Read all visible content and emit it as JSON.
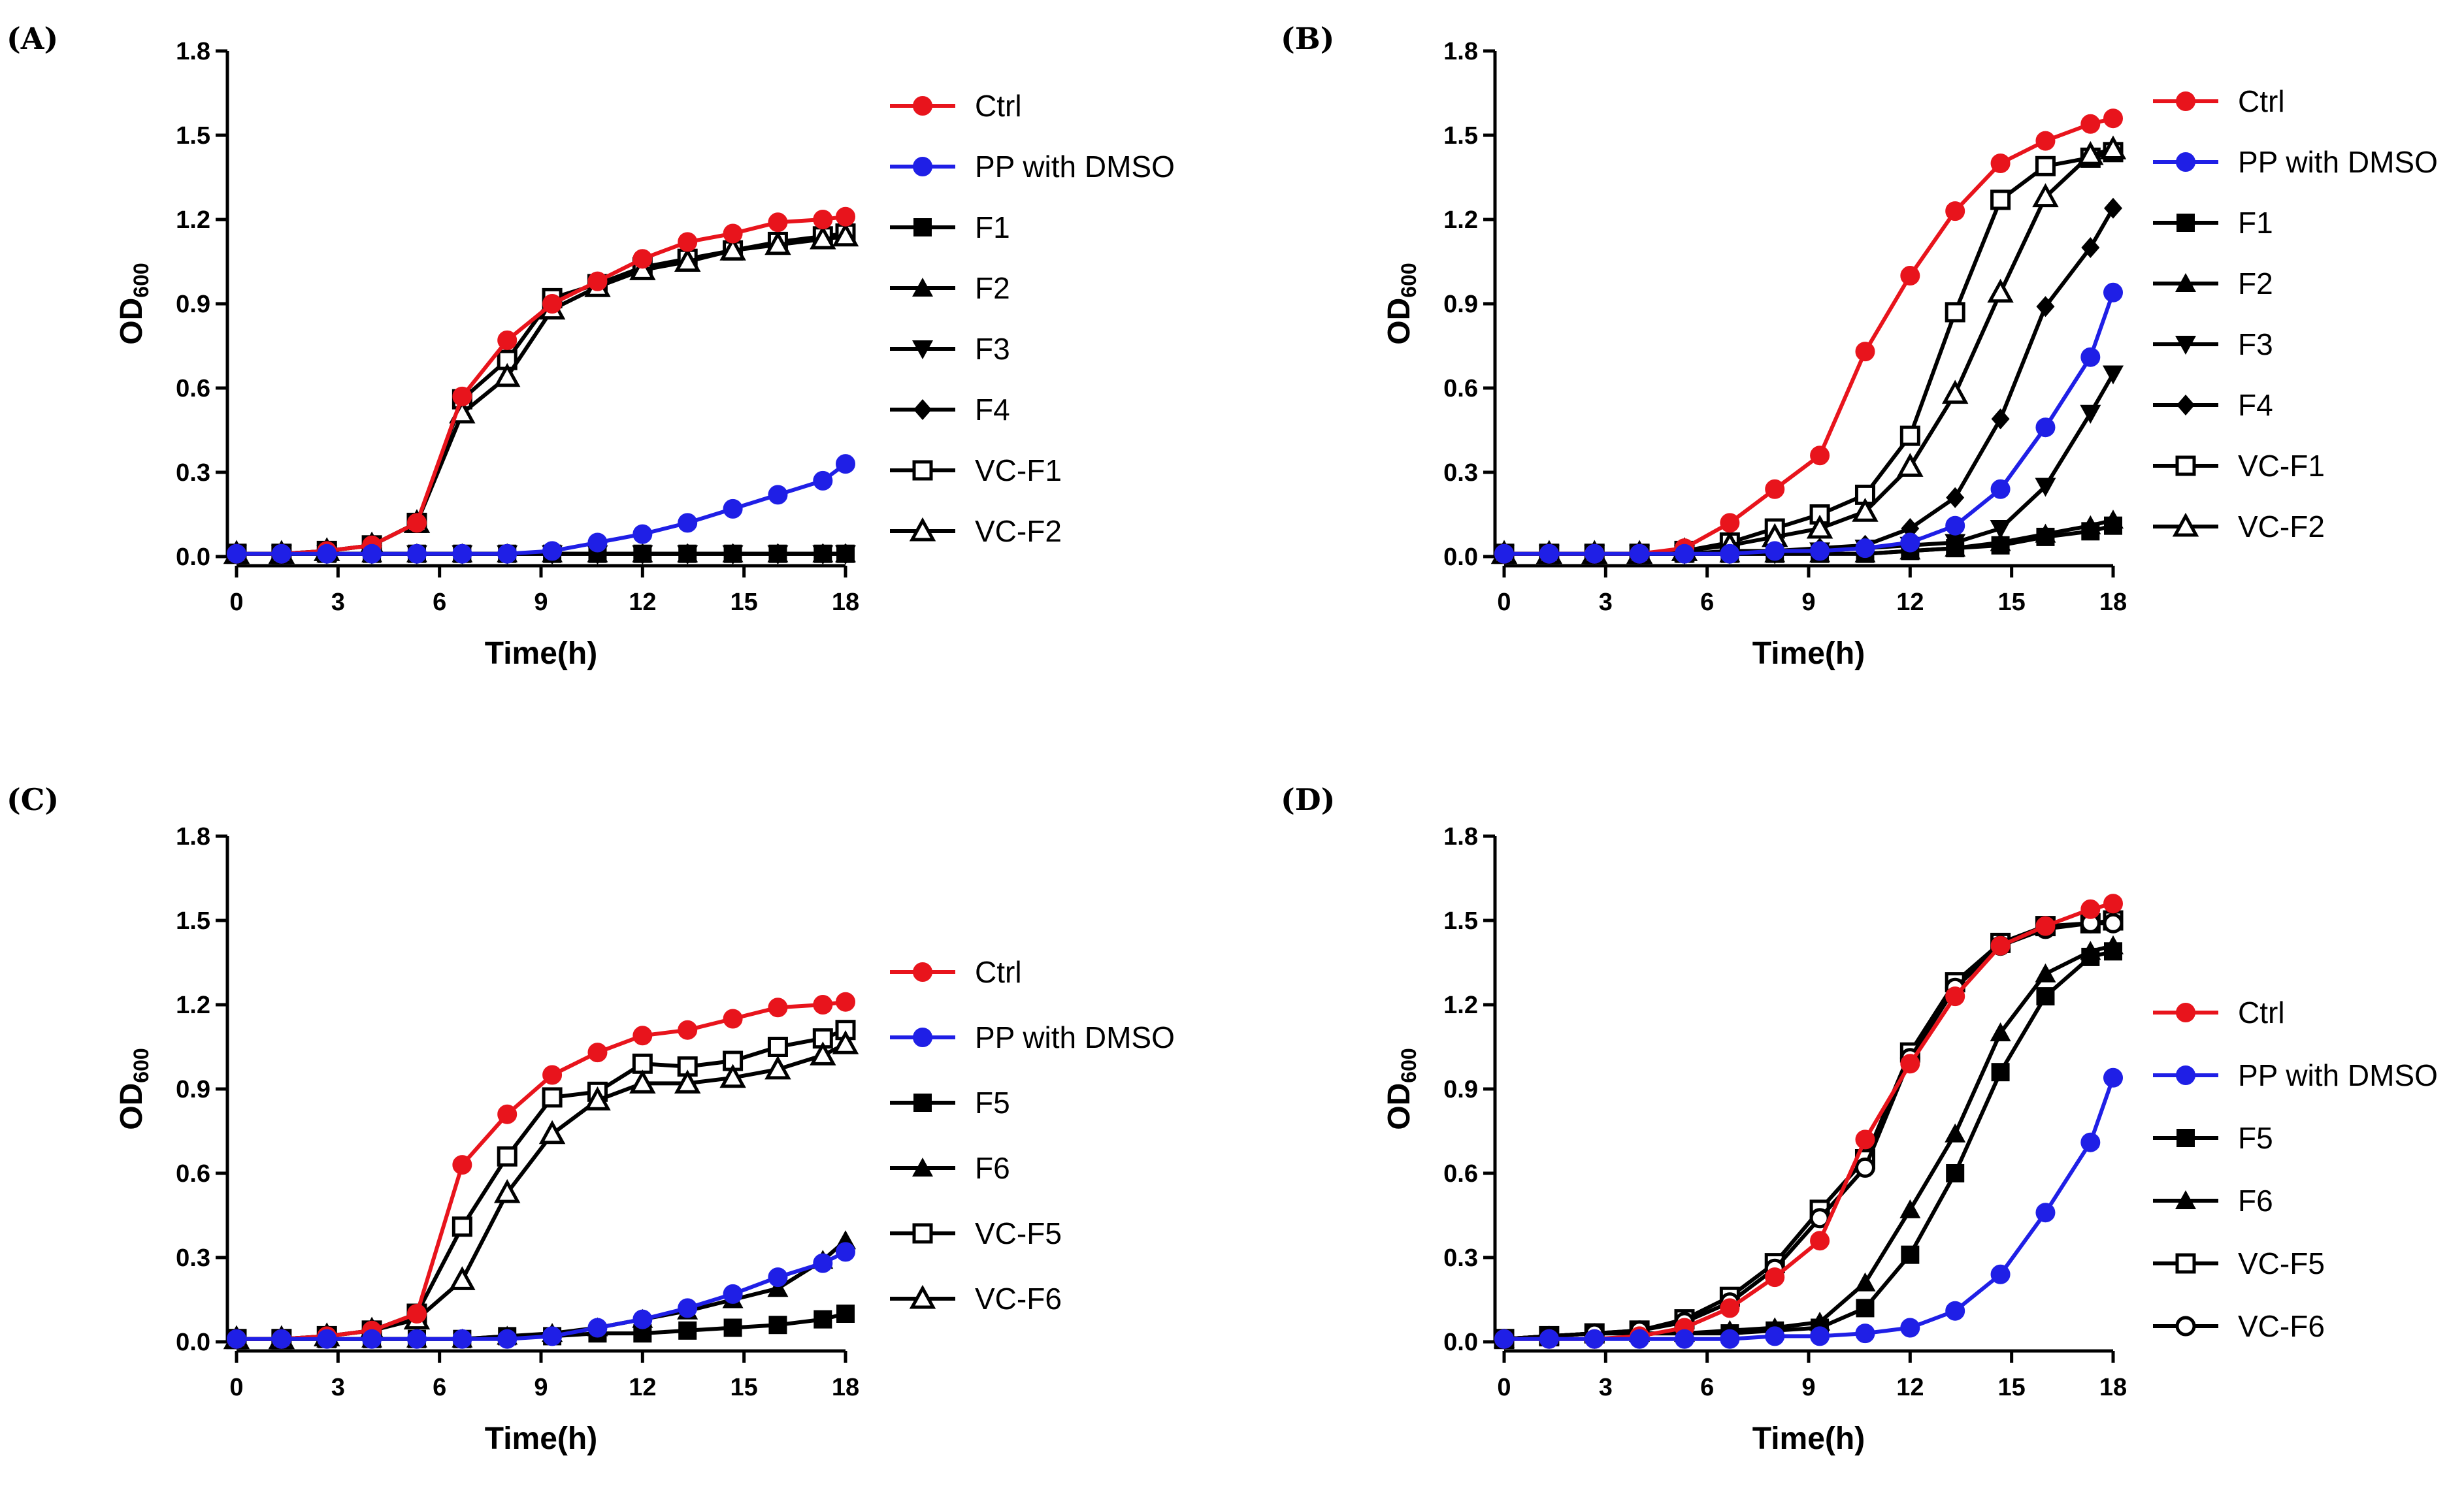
{
  "figure": {
    "panel_labels": [
      "(A)",
      "(B)",
      "(C)",
      "(D)"
    ]
  },
  "chart_data": [
    {
      "panel": "(A)",
      "type": "line",
      "xlabel": "Time(h)",
      "ylabel": "OD",
      "ylabel_sub": "600",
      "xlim": [
        0,
        18
      ],
      "ylim": [
        0,
        1.8
      ],
      "xticks": [
        "0",
        "3",
        "6",
        "9",
        "12",
        "15",
        "18"
      ],
      "yticks": [
        "0.0",
        "0.3",
        "0.6",
        "0.9",
        "1.2",
        "1.5",
        "1.8"
      ],
      "x": [
        0,
        1.33,
        2.67,
        4,
        5.33,
        6.67,
        8,
        9.33,
        10.67,
        12,
        13.33,
        14.67,
        16,
        17.33,
        18
      ],
      "series": [
        {
          "name": "Ctrl",
          "color": "#e8141c",
          "marker": "circle",
          "values": [
            0.01,
            0.01,
            0.02,
            0.04,
            0.12,
            0.57,
            0.77,
            0.9,
            0.98,
            1.06,
            1.12,
            1.15,
            1.19,
            1.2,
            1.21
          ]
        },
        {
          "name": "PP with DMSO",
          "color": "#1f1fe6",
          "marker": "circle",
          "values": [
            0.01,
            0.01,
            0.01,
            0.01,
            0.01,
            0.01,
            0.01,
            0.02,
            0.05,
            0.08,
            0.12,
            0.17,
            0.22,
            0.27,
            0.33
          ]
        },
        {
          "name": "F1",
          "color": "#000000",
          "marker": "square",
          "values": [
            0.01,
            0.01,
            0.01,
            0.01,
            0.01,
            0.01,
            0.01,
            0.01,
            0.01,
            0.01,
            0.01,
            0.01,
            0.01,
            0.01,
            0.01
          ]
        },
        {
          "name": "F2",
          "color": "#000000",
          "marker": "triangle",
          "values": [
            0.01,
            0.01,
            0.01,
            0.01,
            0.01,
            0.01,
            0.01,
            0.01,
            0.01,
            0.01,
            0.01,
            0.01,
            0.01,
            0.01,
            0.01
          ]
        },
        {
          "name": "F3",
          "color": "#000000",
          "marker": "triangle-down",
          "values": [
            0.01,
            0.01,
            0.01,
            0.01,
            0.01,
            0.01,
            0.01,
            0.01,
            0.01,
            0.01,
            0.01,
            0.01,
            0.01,
            0.01,
            0.01
          ]
        },
        {
          "name": "F4",
          "color": "#000000",
          "marker": "diamond",
          "values": [
            0.01,
            0.01,
            0.01,
            0.01,
            0.01,
            0.01,
            0.01,
            0.01,
            0.01,
            0.01,
            0.01,
            0.01,
            0.01,
            0.01,
            0.01
          ]
        },
        {
          "name": "VC-F1",
          "color": "#000000",
          "marker": "square-open",
          "values": [
            0.01,
            0.01,
            0.02,
            0.04,
            0.12,
            0.56,
            0.7,
            0.92,
            0.97,
            1.03,
            1.06,
            1.09,
            1.12,
            1.14,
            1.15
          ]
        },
        {
          "name": "VC-F2",
          "color": "#000000",
          "marker": "triangle-open",
          "values": [
            0.01,
            0.01,
            0.02,
            0.04,
            0.12,
            0.51,
            0.64,
            0.88,
            0.96,
            1.02,
            1.05,
            1.09,
            1.11,
            1.13,
            1.14
          ]
        }
      ]
    },
    {
      "panel": "(B)",
      "type": "line",
      "xlabel": "Time(h)",
      "ylabel": "OD",
      "ylabel_sub": "600",
      "xlim": [
        0,
        18
      ],
      "ylim": [
        0,
        1.8
      ],
      "xticks": [
        "0",
        "3",
        "6",
        "9",
        "12",
        "15",
        "18"
      ],
      "yticks": [
        "0.0",
        "0.3",
        "0.6",
        "0.9",
        "1.2",
        "1.5",
        "1.8"
      ],
      "x": [
        0,
        1.33,
        2.67,
        4,
        5.33,
        6.67,
        8,
        9.33,
        10.67,
        12,
        13.33,
        14.67,
        16,
        17.33,
        18
      ],
      "series": [
        {
          "name": "Ctrl",
          "color": "#e8141c",
          "marker": "circle",
          "values": [
            0.01,
            0.01,
            0.01,
            0.01,
            0.03,
            0.12,
            0.24,
            0.36,
            0.73,
            1.0,
            1.23,
            1.4,
            1.48,
            1.54,
            1.56
          ]
        },
        {
          "name": "PP with DMSO",
          "color": "#1f1fe6",
          "marker": "circle",
          "values": [
            0.01,
            0.01,
            0.01,
            0.01,
            0.01,
            0.01,
            0.02,
            0.02,
            0.03,
            0.05,
            0.11,
            0.24,
            0.46,
            0.71,
            0.94
          ]
        },
        {
          "name": "F1",
          "color": "#000000",
          "marker": "square",
          "values": [
            0.01,
            0.01,
            0.01,
            0.01,
            0.01,
            0.01,
            0.01,
            0.01,
            0.01,
            0.02,
            0.03,
            0.04,
            0.07,
            0.09,
            0.11
          ]
        },
        {
          "name": "F2",
          "color": "#000000",
          "marker": "triangle",
          "values": [
            0.01,
            0.01,
            0.01,
            0.01,
            0.01,
            0.01,
            0.01,
            0.01,
            0.01,
            0.02,
            0.03,
            0.05,
            0.08,
            0.11,
            0.13
          ]
        },
        {
          "name": "F3",
          "color": "#000000",
          "marker": "triangle-down",
          "values": [
            0.01,
            0.01,
            0.01,
            0.01,
            0.01,
            0.01,
            0.01,
            0.02,
            0.03,
            0.04,
            0.05,
            0.1,
            0.25,
            0.51,
            0.65
          ]
        },
        {
          "name": "F4",
          "color": "#000000",
          "marker": "diamond",
          "values": [
            0.01,
            0.01,
            0.01,
            0.01,
            0.01,
            0.02,
            0.02,
            0.03,
            0.04,
            0.1,
            0.21,
            0.49,
            0.89,
            1.1,
            1.24
          ]
        },
        {
          "name": "VC-F1",
          "color": "#000000",
          "marker": "square-open",
          "values": [
            0.01,
            0.01,
            0.01,
            0.01,
            0.02,
            0.05,
            0.1,
            0.15,
            0.22,
            0.43,
            0.87,
            1.27,
            1.39,
            1.42,
            1.44
          ]
        },
        {
          "name": "VC-F2",
          "color": "#000000",
          "marker": "triangle-open",
          "values": [
            0.01,
            0.01,
            0.01,
            0.01,
            0.02,
            0.04,
            0.07,
            0.1,
            0.16,
            0.32,
            0.58,
            0.94,
            1.28,
            1.43,
            1.45
          ]
        }
      ]
    },
    {
      "panel": "(C)",
      "type": "line",
      "xlabel": "Time(h)",
      "ylabel": "OD",
      "ylabel_sub": "600",
      "xlim": [
        0,
        18
      ],
      "ylim": [
        0,
        1.8
      ],
      "xticks": [
        "0",
        "3",
        "6",
        "9",
        "12",
        "15",
        "18"
      ],
      "yticks": [
        "0.0",
        "0.3",
        "0.6",
        "0.9",
        "1.2",
        "1.5",
        "1.8"
      ],
      "x": [
        0,
        1.33,
        2.67,
        4,
        5.33,
        6.67,
        8,
        9.33,
        10.67,
        12,
        13.33,
        14.67,
        16,
        17.33,
        18
      ],
      "series": [
        {
          "name": "Ctrl",
          "color": "#e8141c",
          "marker": "circle",
          "values": [
            0.01,
            0.01,
            0.02,
            0.04,
            0.1,
            0.63,
            0.81,
            0.95,
            1.03,
            1.09,
            1.11,
            1.15,
            1.19,
            1.2,
            1.21
          ]
        },
        {
          "name": "PP with DMSO",
          "color": "#1f1fe6",
          "marker": "circle",
          "values": [
            0.01,
            0.01,
            0.01,
            0.01,
            0.01,
            0.01,
            0.01,
            0.02,
            0.05,
            0.08,
            0.12,
            0.17,
            0.23,
            0.28,
            0.32
          ]
        },
        {
          "name": "F5",
          "color": "#000000",
          "marker": "square",
          "values": [
            0.01,
            0.01,
            0.01,
            0.01,
            0.01,
            0.01,
            0.02,
            0.02,
            0.03,
            0.03,
            0.04,
            0.05,
            0.06,
            0.08,
            0.1
          ]
        },
        {
          "name": "F6",
          "color": "#000000",
          "marker": "triangle",
          "values": [
            0.01,
            0.01,
            0.01,
            0.01,
            0.01,
            0.01,
            0.02,
            0.03,
            0.05,
            0.08,
            0.11,
            0.15,
            0.19,
            0.29,
            0.36
          ]
        },
        {
          "name": "VC-F5",
          "color": "#000000",
          "marker": "square-open",
          "values": [
            0.01,
            0.01,
            0.02,
            0.04,
            0.1,
            0.41,
            0.66,
            0.87,
            0.89,
            0.99,
            0.98,
            1.0,
            1.05,
            1.08,
            1.11
          ]
        },
        {
          "name": "VC-F6",
          "color": "#000000",
          "marker": "triangle-open",
          "values": [
            0.01,
            0.01,
            0.02,
            0.04,
            0.08,
            0.22,
            0.53,
            0.74,
            0.86,
            0.92,
            0.92,
            0.94,
            0.97,
            1.02,
            1.06
          ]
        }
      ]
    },
    {
      "panel": "(D)",
      "type": "line",
      "xlabel": "Time(h)",
      "ylabel": "OD",
      "ylabel_sub": "600",
      "xlim": [
        0,
        18
      ],
      "ylim": [
        0,
        1.8
      ],
      "xticks": [
        "0",
        "3",
        "6",
        "9",
        "12",
        "15",
        "18"
      ],
      "yticks": [
        "0.0",
        "0.3",
        "0.6",
        "0.9",
        "1.2",
        "1.5",
        "1.8"
      ],
      "x": [
        0,
        1.33,
        2.67,
        4,
        5.33,
        6.67,
        8,
        9.33,
        10.67,
        12,
        13.33,
        14.67,
        16,
        17.33,
        18
      ],
      "series": [
        {
          "name": "Ctrl",
          "color": "#e8141c",
          "marker": "circle",
          "values": [
            0.01,
            0.01,
            0.01,
            0.02,
            0.05,
            0.12,
            0.23,
            0.36,
            0.72,
            0.99,
            1.23,
            1.41,
            1.48,
            1.54,
            1.56
          ]
        },
        {
          "name": "PP with DMSO",
          "color": "#1f1fe6",
          "marker": "circle",
          "values": [
            0.01,
            0.01,
            0.01,
            0.01,
            0.01,
            0.01,
            0.02,
            0.02,
            0.03,
            0.05,
            0.11,
            0.24,
            0.46,
            0.71,
            0.94
          ]
        },
        {
          "name": "F5",
          "color": "#000000",
          "marker": "square",
          "values": [
            0.01,
            0.02,
            0.03,
            0.03,
            0.03,
            0.03,
            0.04,
            0.05,
            0.12,
            0.31,
            0.6,
            0.96,
            1.23,
            1.37,
            1.39
          ]
        },
        {
          "name": "F6",
          "color": "#000000",
          "marker": "triangle",
          "values": [
            0.01,
            0.02,
            0.03,
            0.03,
            0.03,
            0.04,
            0.05,
            0.07,
            0.21,
            0.47,
            0.74,
            1.1,
            1.31,
            1.39,
            1.41
          ]
        },
        {
          "name": "VC-F5",
          "color": "#000000",
          "marker": "square-open",
          "values": [
            0.01,
            0.02,
            0.03,
            0.04,
            0.08,
            0.16,
            0.28,
            0.47,
            0.65,
            1.03,
            1.28,
            1.42,
            1.48,
            1.49,
            1.5
          ]
        },
        {
          "name": "VC-F6",
          "color": "#000000",
          "marker": "circle-open",
          "values": [
            0.01,
            0.02,
            0.03,
            0.04,
            0.07,
            0.14,
            0.26,
            0.44,
            0.62,
            1.01,
            1.26,
            1.41,
            1.47,
            1.49,
            1.49
          ]
        }
      ]
    }
  ]
}
